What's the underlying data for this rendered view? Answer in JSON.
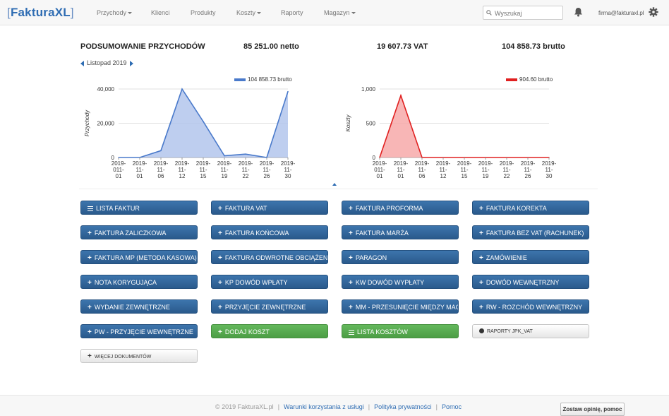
{
  "app": {
    "logo": "FakturaXL",
    "nav": [
      {
        "label": "Przychody",
        "dropdown": true
      },
      {
        "label": "Klienci",
        "dropdown": false
      },
      {
        "label": "Produkty",
        "dropdown": false
      },
      {
        "label": "Koszty",
        "dropdown": true
      },
      {
        "label": "Raporty",
        "dropdown": false
      },
      {
        "label": "Magazyn",
        "dropdown": true
      }
    ],
    "search": {
      "placeholder": "Wyszukaj",
      "value": ""
    },
    "user_email": "firma@fakturaxl.pl",
    "icons": {
      "search": "search-icon",
      "notifications": "bell-icon",
      "settings": "gear-icon"
    }
  },
  "summary": {
    "title": "PODSUMOWANIE PRZYCHODÓW",
    "netto": "85 251.00 netto",
    "vat": "19 607.73 VAT",
    "brutto": "104 858.73 brutto",
    "period": "Listopad 2019"
  },
  "chart_data": [
    {
      "type": "area",
      "legend": "104 858.73 brutto",
      "legend_position": "top",
      "ylabel": "Przychody",
      "color": "#4a7acb",
      "fill": "#b3c5ec",
      "x": [
        "2019-011-01",
        "2019-11-01",
        "2019-11-06",
        "2019-11-12",
        "2019-11-15",
        "2019-11-19",
        "2019-11-22",
        "2019-11-26",
        "2019-11-30"
      ],
      "values": [
        0,
        0,
        4000,
        40000,
        21000,
        1000,
        2000,
        0,
        38500
      ],
      "ylim": [
        0,
        40000
      ],
      "yticks": [
        0,
        20000,
        40000
      ],
      "ytick_labels": [
        "0",
        "20,000",
        "40,000"
      ],
      "grid": true
    },
    {
      "type": "area",
      "legend": "904.60 brutto",
      "legend_position": "top",
      "ylabel": "Koszty",
      "color": "#e02020",
      "fill": "#f7a9a9",
      "x": [
        "2019-011-01",
        "2019-11-01",
        "2019-11-06",
        "2019-11-12",
        "2019-11-15",
        "2019-11-19",
        "2019-11-22",
        "2019-11-26",
        "2019-11-30"
      ],
      "values": [
        0,
        904.6,
        0,
        0,
        0,
        0,
        0,
        0,
        0
      ],
      "ylim": [
        0,
        1000
      ],
      "yticks": [
        0,
        500,
        1000
      ],
      "ytick_labels": [
        "0",
        "500",
        "1,000"
      ],
      "grid": true
    }
  ],
  "buttons": [
    {
      "label": "LISTA FAKTUR",
      "icon": "list-icon",
      "style": "blue"
    },
    {
      "label": "FAKTURA VAT",
      "icon": "plus-icon",
      "style": "blue"
    },
    {
      "label": "FAKTURA PROFORMA",
      "icon": "plus-icon",
      "style": "blue"
    },
    {
      "label": "FAKTURA KOREKTA",
      "icon": "plus-icon",
      "style": "blue"
    },
    {
      "label": "FAKTURA ZALICZKOWA",
      "icon": "plus-icon",
      "style": "blue"
    },
    {
      "label": "FAKTURA KOŃCOWA",
      "icon": "plus-icon",
      "style": "blue"
    },
    {
      "label": "FAKTURA MARŻA",
      "icon": "plus-icon",
      "style": "blue"
    },
    {
      "label": "FAKTURA BEZ VAT (RACHUNEK)",
      "icon": "plus-icon",
      "style": "blue"
    },
    {
      "label": "FAKTURA MP (METODA KASOWA)",
      "icon": "plus-icon",
      "style": "blue"
    },
    {
      "label": "FAKTURA ODWROTNE OBCIĄŻENIE",
      "icon": "plus-icon",
      "style": "blue"
    },
    {
      "label": "PARAGON",
      "icon": "plus-icon",
      "style": "blue"
    },
    {
      "label": "ZAMÓWIENIE",
      "icon": "plus-icon",
      "style": "blue"
    },
    {
      "label": "NOTA KORYGUJĄCA",
      "icon": "plus-icon",
      "style": "blue"
    },
    {
      "label": "KP DOWÓD WPŁATY",
      "icon": "plus-icon",
      "style": "blue"
    },
    {
      "label": "KW DOWÓD WYPŁATY",
      "icon": "plus-icon",
      "style": "blue"
    },
    {
      "label": "DOWÓD WEWNĘTRZNY",
      "icon": "plus-icon",
      "style": "blue"
    },
    {
      "label": "WYDANIE ZEWNĘTRZNE",
      "icon": "plus-icon",
      "style": "blue"
    },
    {
      "label": "PRZYJĘCIE ZEWNĘTRZNE",
      "icon": "plus-icon",
      "style": "blue"
    },
    {
      "label": "MM - PRZESUNIĘCIE MIĘDZY MAGAZYNAMI",
      "icon": "plus-icon",
      "style": "blue"
    },
    {
      "label": "RW - ROZCHÓD WEWNĘTRZNY",
      "icon": "plus-icon",
      "style": "blue"
    },
    {
      "label": "PW - PRZYJĘCIE WEWNĘTRZNE",
      "icon": "plus-icon",
      "style": "blue"
    },
    {
      "label": "DODAJ KOSZT",
      "icon": "plus-icon",
      "style": "green"
    },
    {
      "label": "LISTA KOSZTÓW",
      "icon": "list-icon",
      "style": "green"
    },
    {
      "label": "RAPORTY JPK_VAT",
      "icon": "download-icon",
      "style": "white"
    },
    {
      "label": "WIĘCEJ DOKUMENTÓW",
      "icon": "plus-icon",
      "style": "white"
    }
  ],
  "footer": {
    "copyright": "© 2019 FakturaXL.pl",
    "links": [
      "Warunki korzystania z usługi",
      "Polityka prywatności",
      "Pomoc"
    ],
    "feedback_button": "Zostaw opinię, pomoc"
  }
}
